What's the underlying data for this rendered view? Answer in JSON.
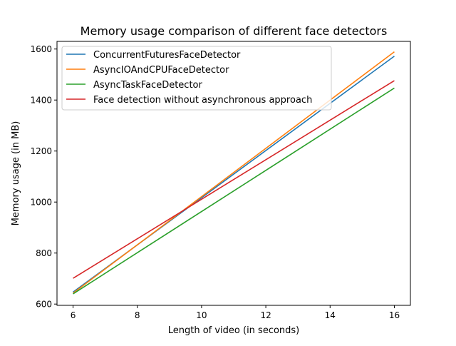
{
  "chart_data": {
    "type": "line",
    "title": "Memory usage comparison of different face detectors",
    "xlabel": "Length of video (in seconds)",
    "ylabel": "Memory usage (in MB)",
    "xlim": [
      5.5,
      16.5
    ],
    "ylim": [
      595,
      1630
    ],
    "xticks": [
      6,
      8,
      10,
      12,
      14,
      16
    ],
    "xtick_labels": [
      "6",
      "8",
      "10",
      "12",
      "14",
      "16"
    ],
    "yticks": [
      600,
      800,
      1000,
      1200,
      1400,
      1600
    ],
    "ytick_labels": [
      "600",
      "800",
      "1000",
      "1200",
      "1400",
      "1600"
    ],
    "grid": false,
    "legend_position": "top-left",
    "series": [
      {
        "name": "ConcurrentFuturesFaceDetector",
        "color": "#1f77b4",
        "x": [
          6,
          16
        ],
        "y": [
          647,
          1572
        ]
      },
      {
        "name": "AsyncIOAndCPUFaceDetector",
        "color": "#ff7f0e",
        "x": [
          6,
          16
        ],
        "y": [
          643,
          1589
        ]
      },
      {
        "name": "AsyncTaskFaceDetector",
        "color": "#2ca02c",
        "x": [
          6,
          16
        ],
        "y": [
          640,
          1447
        ]
      },
      {
        "name": "Face detection without asynchronous approach",
        "color": "#d62728",
        "x": [
          6,
          16
        ],
        "y": [
          701,
          1476
        ]
      }
    ]
  }
}
